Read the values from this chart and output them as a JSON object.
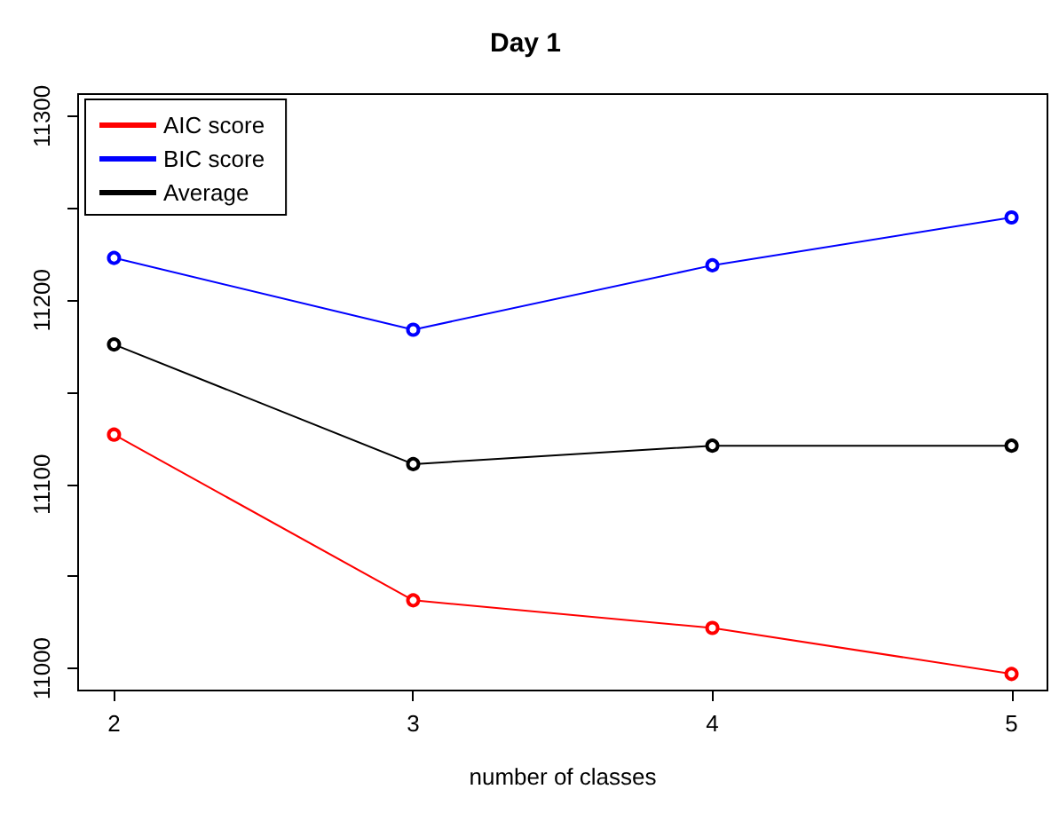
{
  "chart_data": {
    "type": "line",
    "title": "Day 1",
    "xlabel": "number of classes",
    "x": [
      2,
      3,
      4,
      5
    ],
    "series": [
      {
        "name": "AIC score",
        "color": "#ff0000",
        "values": [
          11127,
          11037,
          11022,
          10997
        ]
      },
      {
        "name": "BIC score",
        "color": "#0000ff",
        "values": [
          11223,
          11184,
          11219,
          11245
        ]
      },
      {
        "name": "Average",
        "color": "#000000",
        "values": [
          11176,
          11111,
          11121,
          11121
        ]
      }
    ],
    "xlim": [
      1.88,
      5.12
    ],
    "xticks": [
      2,
      3,
      4,
      5
    ],
    "ylim": [
      10988,
      11312
    ],
    "yticks": [
      11000,
      {
        "value": 11050,
        "label": null
      },
      11100,
      {
        "value": 11150,
        "label": null
      },
      11200,
      {
        "value": 11250,
        "label": null
      },
      11300
    ],
    "grid": false,
    "legend": "top left",
    "marker": "circle",
    "line_style": "solid"
  }
}
